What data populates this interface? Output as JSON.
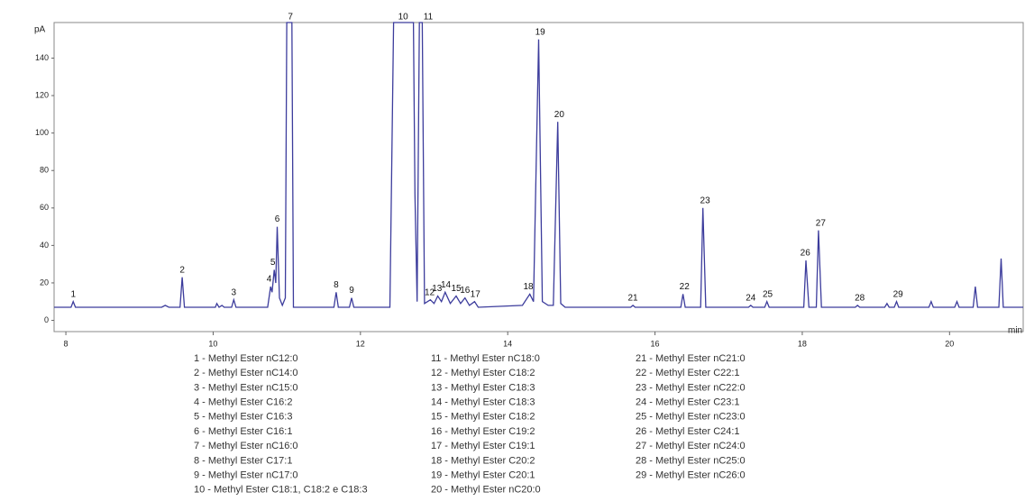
{
  "chart_data": {
    "type": "line",
    "x_label": "min",
    "y_label": "pA",
    "xlim": [
      7.84,
      21.0
    ],
    "ylim": [
      -6,
      159
    ],
    "xticks": [
      8,
      10,
      12,
      14,
      16,
      18,
      20
    ],
    "yticks": [
      0,
      20,
      40,
      60,
      80,
      100,
      120,
      140
    ],
    "series": [
      {
        "color": "#3c3c9c",
        "x": [
          7.84,
          8.07,
          8.1,
          8.13,
          9.3,
          9.35,
          9.4,
          9.55,
          9.58,
          9.61,
          10.03,
          10.05,
          10.08,
          10.12,
          10.15,
          10.25,
          10.28,
          10.31,
          10.74,
          10.78,
          10.8,
          10.83,
          10.85,
          10.87,
          10.9,
          10.94,
          10.98,
          11.0,
          11.07,
          11.09,
          11.64,
          11.67,
          11.7,
          11.85,
          11.88,
          11.91,
          12.4,
          12.45,
          12.72,
          12.74,
          12.77,
          12.8,
          12.84,
          12.87,
          12.95,
          13.0,
          13.05,
          13.1,
          13.15,
          13.22,
          13.3,
          13.36,
          13.42,
          13.48,
          13.55,
          13.6,
          14.2,
          14.3,
          14.35,
          14.42,
          14.47,
          14.55,
          14.62,
          14.68,
          14.72,
          14.78,
          15.67,
          15.7,
          15.73,
          16.35,
          16.38,
          16.41,
          16.62,
          16.65,
          16.69,
          17.27,
          17.3,
          17.33,
          17.49,
          17.52,
          17.55,
          18.02,
          18.05,
          18.09,
          18.19,
          18.22,
          18.26,
          18.72,
          18.75,
          18.78,
          19.12,
          19.15,
          19.18,
          19.25,
          19.28,
          19.31,
          19.72,
          19.75,
          19.78,
          20.07,
          20.1,
          20.13,
          20.32,
          20.35,
          20.38,
          20.67,
          20.7,
          20.73,
          21.0
        ],
        "values": [
          7,
          7,
          10,
          7,
          7,
          8,
          7,
          7,
          23,
          7,
          7,
          9,
          7,
          8,
          7,
          7,
          11,
          7,
          7,
          18,
          15,
          27,
          20,
          50,
          12,
          8,
          12,
          159,
          159,
          7,
          7,
          15,
          7,
          7,
          12,
          7,
          7,
          159,
          159,
          67,
          10,
          159,
          159,
          9,
          11,
          9,
          13,
          10,
          15,
          9,
          13,
          9,
          12,
          8,
          10,
          7,
          8,
          14,
          10,
          150,
          10,
          8,
          8,
          106,
          9,
          7,
          7,
          8,
          7,
          7,
          14,
          7,
          7,
          60,
          7,
          7,
          8,
          7,
          7,
          10,
          7,
          7,
          32,
          7,
          7,
          48,
          7,
          7,
          8,
          7,
          7,
          9,
          7,
          7,
          10,
          7,
          7,
          10,
          7,
          7,
          10,
          7,
          7,
          18,
          7,
          7,
          33,
          7,
          7
        ]
      }
    ],
    "annotations": [
      {
        "text": "1",
        "x": 8.1,
        "y": 10
      },
      {
        "text": "2",
        "x": 9.58,
        "y": 23
      },
      {
        "text": "3",
        "x": 10.28,
        "y": 11
      },
      {
        "text": "4",
        "x": 10.76,
        "y": 18
      },
      {
        "text": "5",
        "x": 10.81,
        "y": 27
      },
      {
        "text": "6",
        "x": 10.87,
        "y": 50
      },
      {
        "text": "7",
        "x": 11.05,
        "y": 159
      },
      {
        "text": "8",
        "x": 11.67,
        "y": 15
      },
      {
        "text": "9",
        "x": 11.88,
        "y": 12
      },
      {
        "text": "10",
        "x": 12.58,
        "y": 159
      },
      {
        "text": "11",
        "x": 12.92,
        "y": 159
      },
      {
        "text": "12",
        "x": 12.94,
        "y": 11
      },
      {
        "text": "13",
        "x": 13.04,
        "y": 13
      },
      {
        "text": "14",
        "x": 13.16,
        "y": 15
      },
      {
        "text": "15",
        "x": 13.3,
        "y": 13
      },
      {
        "text": "16",
        "x": 13.42,
        "y": 12
      },
      {
        "text": "17",
        "x": 13.56,
        "y": 10
      },
      {
        "text": "18",
        "x": 14.28,
        "y": 14
      },
      {
        "text": "19",
        "x": 14.44,
        "y": 150
      },
      {
        "text": "20",
        "x": 14.7,
        "y": 106
      },
      {
        "text": "21",
        "x": 15.7,
        "y": 8
      },
      {
        "text": "22",
        "x": 16.4,
        "y": 14
      },
      {
        "text": "23",
        "x": 16.68,
        "y": 60
      },
      {
        "text": "24",
        "x": 17.3,
        "y": 8
      },
      {
        "text": "25",
        "x": 17.53,
        "y": 10
      },
      {
        "text": "26",
        "x": 18.04,
        "y": 32
      },
      {
        "text": "27",
        "x": 18.25,
        "y": 48
      },
      {
        "text": "28",
        "x": 18.78,
        "y": 8
      },
      {
        "text": "29",
        "x": 19.3,
        "y": 10
      }
    ],
    "legend": [
      "1 - Methyl Ester nC12:0",
      "2 - Methyl Ester nC14:0",
      "3 - Methyl Ester nC15:0",
      "4 - Methyl Ester C16:2",
      "5 - Methyl Ester C16:3",
      "6 - Methyl Ester C16:1",
      "7 - Methyl Ester nC16:0",
      "8 - Methyl Ester C17:1",
      "9 - Methyl Ester nC17:0",
      "10 - Methyl Ester C18:1, C18:2 e C18:3",
      "11 - Methyl Ester nC18:0",
      "12 - Methyl Ester C18:2",
      "13 - Methyl Ester C18:3",
      "14 - Methyl Ester C18:3",
      "15 - Methyl Ester C18:2",
      "16 - Methyl Ester C19:2",
      "17 - Methyl Ester C19:1",
      "18 - Methyl Ester C20:2",
      "19 - Methyl Ester C20:1",
      "20 - Methyl Ester nC20:0",
      "21 - Methyl Ester nC21:0",
      "22 - Methyl Ester C22:1",
      "23 - Methyl Ester nC22:0",
      "24 - Methyl Ester C23:1",
      "25 - Methyl Ester nC23:0",
      "26 - Methyl Ester C24:1",
      "27 - Methyl Ester nC24:0",
      "28 - Methyl Ester nC25:0",
      "29 - Methyl Ester nC26:0"
    ]
  }
}
